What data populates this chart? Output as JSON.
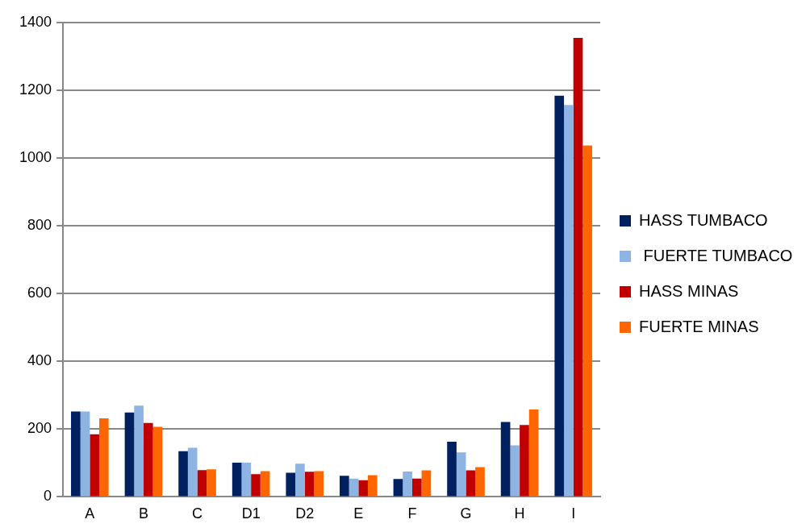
{
  "chart_data": {
    "type": "bar",
    "categories": [
      "A",
      "B",
      "C",
      "D1",
      "D2",
      "E",
      "F",
      "G",
      "H",
      "I"
    ],
    "series": [
      {
        "name": "HASS TUMBACO",
        "color": "#002060",
        "values": [
          252,
          249,
          135,
          101,
          71,
          62,
          53,
          163,
          221,
          1184
        ]
      },
      {
        "name": " FUERTE TUMBACO",
        "color": "#8eb4e3",
        "values": [
          252,
          269,
          145,
          101,
          98,
          54,
          75,
          131,
          152,
          1157
        ]
      },
      {
        "name": "HASS MINAS",
        "color": "#c00000",
        "values": [
          185,
          218,
          79,
          67,
          74,
          49,
          54,
          78,
          212,
          1355
        ]
      },
      {
        "name": "FUERTE MINAS",
        "color": "#ff6600",
        "values": [
          232,
          207,
          81,
          76,
          76,
          64,
          78,
          88,
          258,
          1037
        ]
      }
    ],
    "ylim": [
      0,
      1400
    ],
    "yticks": [
      0,
      200,
      400,
      600,
      800,
      1000,
      1200,
      1400
    ],
    "grid": "y",
    "legend": "right"
  }
}
